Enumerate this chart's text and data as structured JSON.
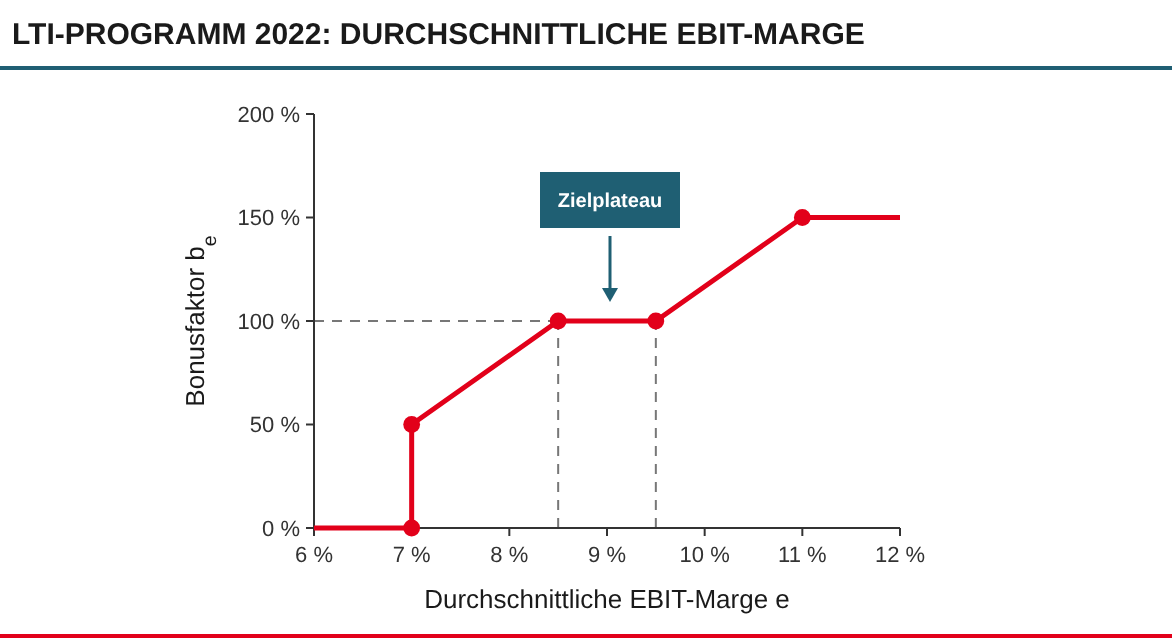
{
  "chart_data": {
    "type": "line",
    "title": "LTI-PROGRAMM 2022: DURCHSCHNITTLICHE EBIT-MARGE",
    "xlabel": "Durchschnittliche EBIT-Marge e",
    "ylabel": "Bonusfaktor b$_{e}$",
    "xlim": [
      6,
      12
    ],
    "xticks": [
      {
        "value": 6,
        "label": "6 %"
      },
      {
        "value": 7,
        "label": "7 %"
      },
      {
        "value": 8,
        "label": "8 %"
      },
      {
        "value": 9,
        "label": "9 %"
      },
      {
        "value": 10,
        "label": "10 %"
      },
      {
        "value": 11,
        "label": "11 %"
      },
      {
        "value": 12,
        "label": "12 %"
      }
    ],
    "ylim": [
      0,
      200
    ],
    "yticks": [
      {
        "value": 0,
        "label": "0 %"
      },
      {
        "value": 50,
        "label": "50 %"
      },
      {
        "value": 100,
        "label": "100 %"
      },
      {
        "value": 150,
        "label": "150 %"
      },
      {
        "value": 200,
        "label": "200 %"
      }
    ],
    "series": [
      {
        "color": "#e2001a",
        "x": [
          6,
          7,
          7,
          8.5,
          9.5,
          11,
          12
        ],
        "values": [
          0,
          0,
          50,
          100,
          100,
          150,
          150
        ],
        "marker": "none",
        "line_style": "solid"
      },
      {
        "type": "scatter",
        "color": "#e2001a",
        "x": [
          7,
          7,
          8.5,
          9.5,
          11
        ],
        "values": [
          0,
          50,
          100,
          100,
          150
        ],
        "marker": "circle"
      }
    ],
    "ref_lines": [
      {
        "axis": "y",
        "value": 100,
        "color": "#777777",
        "line_style": "dashed"
      },
      {
        "axis": "x",
        "value": 8.5,
        "color": "#777777",
        "line_style": "dashed"
      },
      {
        "axis": "x",
        "value": 9.5,
        "color": "#777777",
        "line_style": "dashed"
      }
    ],
    "annotations": [
      "Zielplateau"
    ],
    "grid": false
  }
}
